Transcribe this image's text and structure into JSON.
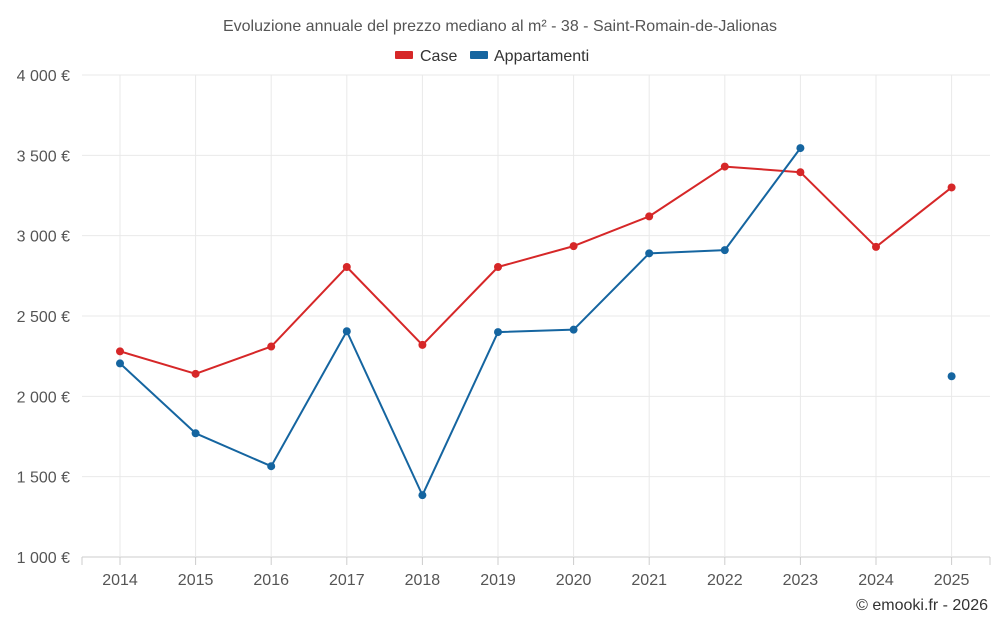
{
  "chart_data": {
    "type": "line",
    "title": "Evoluzione annuale del prezzo mediano al m² - 38 - Saint-Romain-de-Jalionas",
    "x": [
      "2014",
      "2015",
      "2016",
      "2017",
      "2018",
      "2019",
      "2020",
      "2021",
      "2022",
      "2023",
      "2024",
      "2025"
    ],
    "ylim": [
      1000,
      4000
    ],
    "yticks": [
      {
        "value": 1000,
        "label": "1 000 €"
      },
      {
        "value": 1500,
        "label": "1 500 €"
      },
      {
        "value": 2000,
        "label": "2 000 €"
      },
      {
        "value": 2500,
        "label": "2 500 €"
      },
      {
        "value": 3000,
        "label": "3 000 €"
      },
      {
        "value": 3500,
        "label": "3 500 €"
      },
      {
        "value": 4000,
        "label": "4 000 €"
      }
    ],
    "grid": true,
    "legend_position": "top-center",
    "series": [
      {
        "name": "Case",
        "color": "#d62728",
        "values": [
          2280,
          2140,
          2310,
          2805,
          2320,
          2805,
          2935,
          3120,
          3430,
          3395,
          2930,
          3300
        ]
      },
      {
        "name": "Appartamenti",
        "color": "#1565a0",
        "values": [
          2205,
          1770,
          1565,
          2405,
          1385,
          2400,
          2415,
          2890,
          2910,
          3545,
          null,
          2125
        ]
      }
    ],
    "credit": "© emooki.fr - 2026"
  }
}
